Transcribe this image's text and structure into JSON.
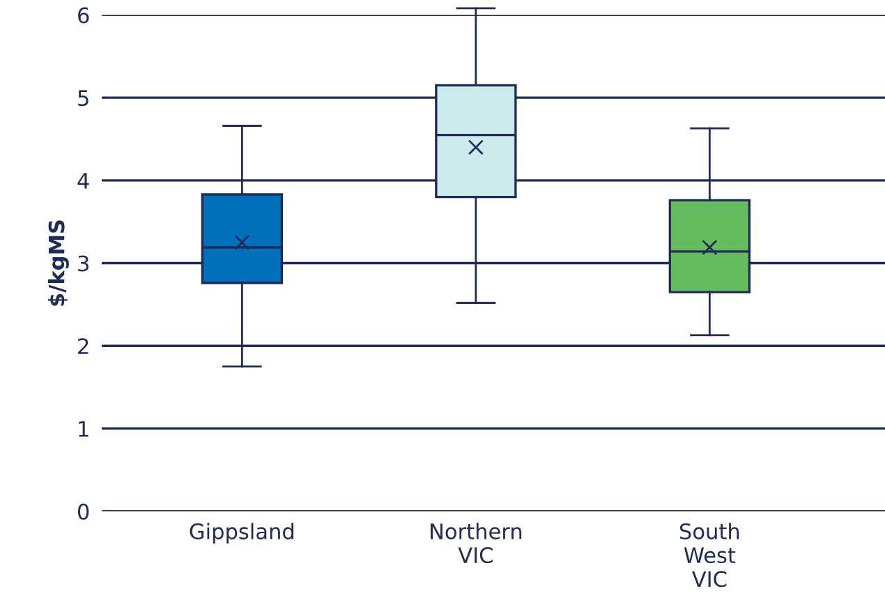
{
  "chart_data": {
    "type": "box",
    "ylabel": "$/kgMS",
    "categories": [
      "Gippsland",
      "Northern\nVIC",
      "South\nWest\nVIC"
    ],
    "colors": [
      "#0070bb",
      "#cce9ec",
      "#66bb5e"
    ],
    "boxes": [
      {
        "low": 1.75,
        "q1": 2.76,
        "median": 3.19,
        "q3": 3.83,
        "high": 4.66,
        "mean": 3.25
      },
      {
        "low": 2.52,
        "q1": 3.8,
        "median": 4.55,
        "q3": 5.15,
        "high": 6.08,
        "mean": 4.4
      },
      {
        "low": 2.13,
        "q1": 2.65,
        "median": 3.14,
        "q3": 3.76,
        "high": 4.63,
        "mean": 3.19
      }
    ],
    "ylim": [
      0,
      6
    ],
    "yticks": [
      0,
      1,
      2,
      3,
      4,
      5,
      6
    ],
    "grid": "y"
  }
}
